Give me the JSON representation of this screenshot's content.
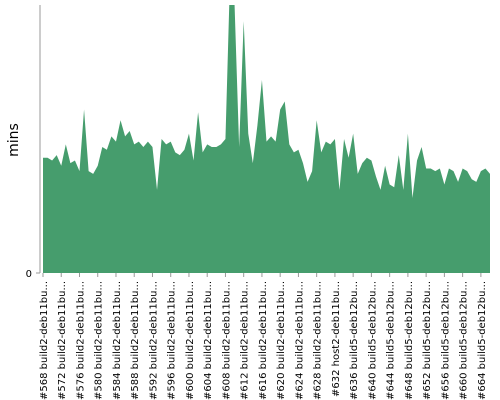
{
  "chart_data": {
    "type": "area",
    "y_label": "mins",
    "color": "#469d6d",
    "ylim": [
      0,
      100
    ],
    "yticks": [
      0
    ],
    "categories": [
      "#568 build2-deb11bu...",
      null,
      null,
      null,
      "#572 build2-deb11bu...",
      null,
      null,
      null,
      "#576 build2-deb11bu...",
      null,
      null,
      null,
      "#580 build2-deb11bu...",
      null,
      null,
      null,
      "#584 build2-deb11bu...",
      null,
      null,
      null,
      "#588 build2-deb11bu...",
      null,
      null,
      null,
      "#592 build2-deb11bu...",
      null,
      null,
      null,
      "#596 build2-deb11bu...",
      null,
      null,
      null,
      "#600 build2-deb11bu...",
      null,
      null,
      null,
      "#604 build2-deb11bu...",
      null,
      null,
      null,
      "#608 build2-deb11bu...",
      null,
      null,
      null,
      "#612 build2-deb11bu...",
      null,
      null,
      null,
      "#616 build2-deb11bu...",
      null,
      null,
      null,
      "#620 build2-deb11bu...",
      null,
      null,
      null,
      "#624 build2-deb11bu...",
      null,
      null,
      null,
      "#628 build2-deb11bu...",
      null,
      null,
      null,
      "#632 host2-deb11bu...",
      null,
      null,
      null,
      "#636 build5-deb12bu...",
      null,
      null,
      null,
      "#640 build5-deb12bu...",
      null,
      null,
      null,
      "#644 build5-deb12bu...",
      null,
      null,
      null,
      "#648 build5-deb12bu...",
      null,
      null,
      null,
      "#652 build5-deb12bu...",
      null,
      null,
      null,
      "#656 build5-deb12bu...",
      null,
      null,
      null,
      "#660 build5-deb12bu...",
      null,
      null,
      null,
      "#664 build5-deb12bu...",
      null,
      null
    ],
    "values": [
      43,
      43,
      42,
      44,
      40,
      48,
      41,
      42,
      38,
      61,
      38,
      37,
      40,
      47,
      46,
      51,
      49,
      57,
      51,
      53,
      48,
      49,
      47,
      49,
      47,
      31,
      50,
      48,
      49,
      45,
      44,
      46,
      52,
      42,
      60,
      45,
      48,
      47,
      47,
      48,
      50,
      110,
      100,
      47,
      94,
      52,
      41,
      55,
      72,
      49,
      51,
      49,
      61,
      64,
      48,
      45,
      46,
      41,
      34,
      38,
      57,
      45,
      49,
      48,
      50,
      31,
      50,
      43,
      52,
      37,
      41,
      43,
      42,
      36,
      31,
      40,
      33,
      32,
      44,
      31,
      52,
      28,
      42,
      47,
      39,
      39,
      38,
      39,
      33,
      39,
      38,
      34,
      39,
      38,
      35,
      34,
      38,
      39,
      37
    ]
  }
}
